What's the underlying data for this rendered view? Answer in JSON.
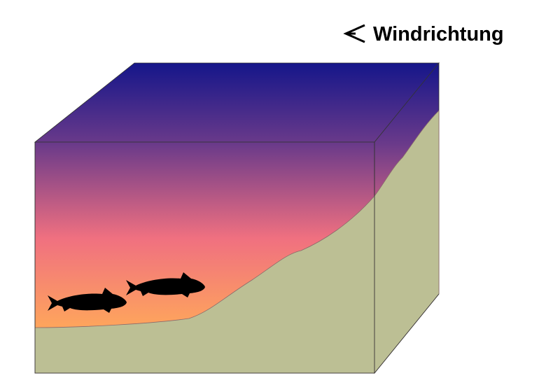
{
  "label": {
    "text": "Windrichtung"
  }
}
